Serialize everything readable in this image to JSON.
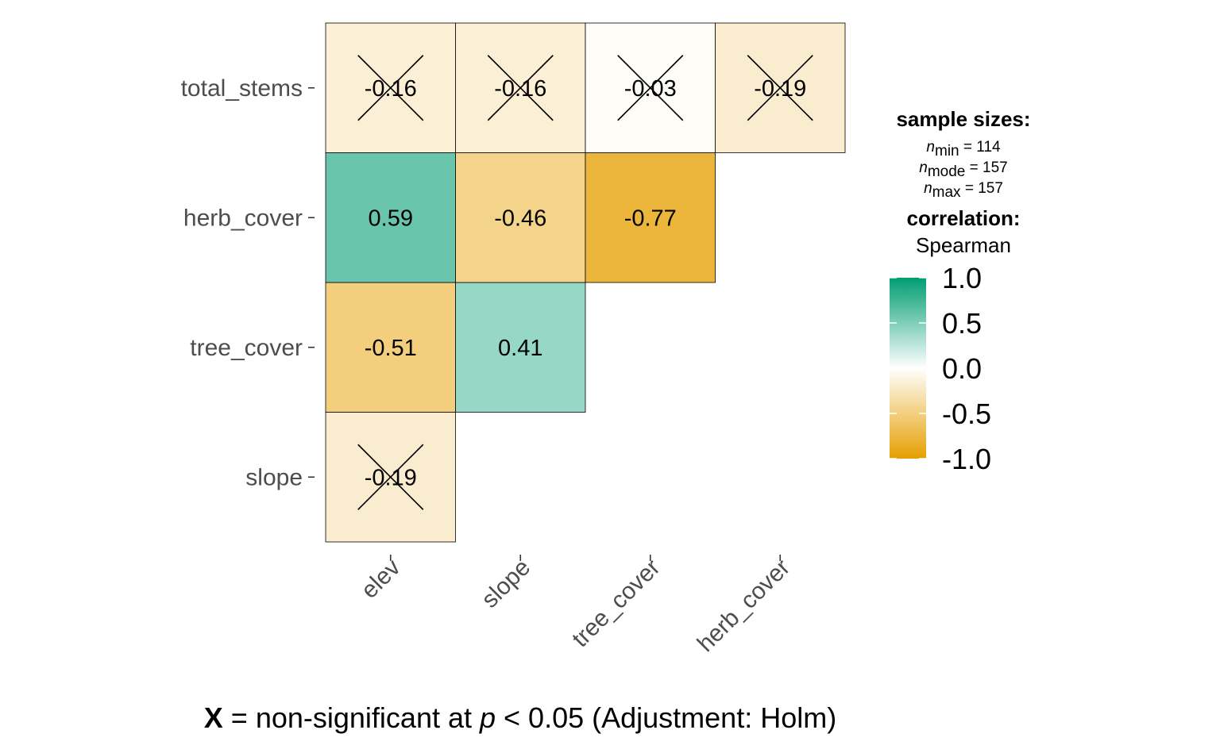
{
  "chart_data": {
    "type": "heatmap",
    "method": "Spearman",
    "x_categories": [
      "elev",
      "slope",
      "tree_cover",
      "herb_cover"
    ],
    "y_categories": [
      "slope",
      "tree_cover",
      "herb_cover",
      "total_stems"
    ],
    "cells": [
      {
        "x": "elev",
        "y": "slope",
        "value": -0.19,
        "label": "-0.19",
        "significant": false
      },
      {
        "x": "elev",
        "y": "tree_cover",
        "value": -0.51,
        "label": "-0.51",
        "significant": true
      },
      {
        "x": "slope",
        "y": "tree_cover",
        "value": 0.41,
        "label": "0.41",
        "significant": true
      },
      {
        "x": "elev",
        "y": "herb_cover",
        "value": 0.59,
        "label": "0.59",
        "significant": true
      },
      {
        "x": "slope",
        "y": "herb_cover",
        "value": -0.46,
        "label": "-0.46",
        "significant": true
      },
      {
        "x": "tree_cover",
        "y": "herb_cover",
        "value": -0.77,
        "label": "-0.77",
        "significant": true
      },
      {
        "x": "elev",
        "y": "total_stems",
        "value": -0.16,
        "label": "-0.16",
        "significant": false
      },
      {
        "x": "slope",
        "y": "total_stems",
        "value": -0.16,
        "label": "-0.16",
        "significant": false
      },
      {
        "x": "tree_cover",
        "y": "total_stems",
        "value": -0.03,
        "label": "-0.03",
        "significant": false
      },
      {
        "x": "herb_cover",
        "y": "total_stems",
        "value": -0.19,
        "label": "-0.19",
        "significant": false
      }
    ],
    "color_scale": {
      "low": "#E69F00",
      "mid": "#FFFFFF",
      "high": "#009E73",
      "limits": [
        -1,
        1
      ],
      "ticks": [
        "1.0",
        "0.5",
        "0.0",
        "-0.5",
        "-1.0"
      ]
    },
    "legend": {
      "sample_title": "sample sizes:",
      "sample_sizes": [
        {
          "sub": "min",
          "value": "114"
        },
        {
          "sub": "mode",
          "value": "157"
        },
        {
          "sub": "max",
          "value": "157"
        }
      ],
      "correlation_title": "correlation:",
      "correlation_method": "Spearman",
      "placement": "right"
    },
    "caption": {
      "symbol": "X",
      "text_before": " = non-significant at ",
      "p_symbol": "p",
      "text_after": " < 0.05 (Adjustment: Holm)"
    }
  }
}
